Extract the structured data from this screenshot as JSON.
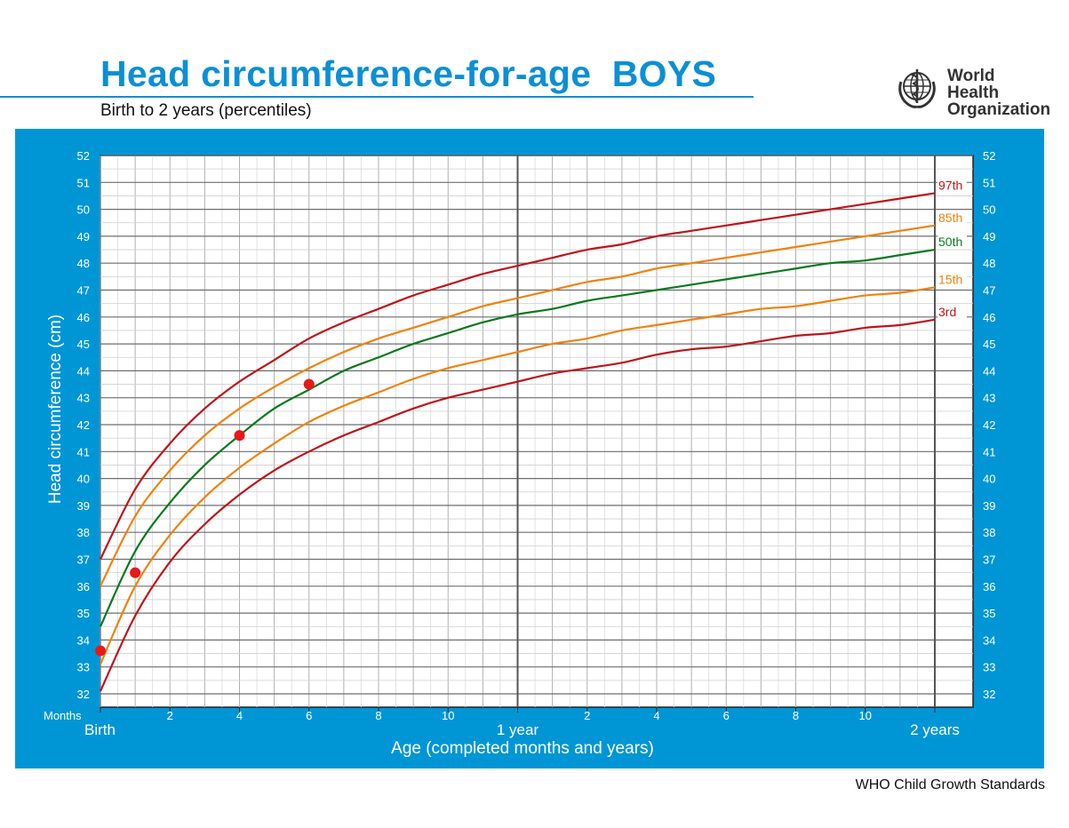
{
  "header": {
    "title": "Head circumference-for-age  BOYS",
    "subtitle": "Birth to 2 years (percentiles)",
    "org_line1": "World Health",
    "org_line2": "Organization",
    "logo_icon": "who-emblem-icon"
  },
  "footer": {
    "text": "WHO Child Growth Standards"
  },
  "colors": {
    "brand_blue": "#0b8fd6",
    "panel_blue": "#0096d6",
    "p97": "#c0141b",
    "p85": "#f0820f",
    "p50": "#0a7a1e",
    "p15": "#f0820f",
    "p3": "#c0141b",
    "points": "#e8181b"
  },
  "chart_data": {
    "type": "line",
    "title": "Head circumference-for-age  BOYS",
    "subtitle": "Birth to 2 years (percentiles)",
    "xlabel": "Age (completed months and years)",
    "ylabel": "Head circumference (cm)",
    "xlim": [
      0,
      24
    ],
    "ylim": [
      31.5,
      52
    ],
    "grid": true,
    "x_unit_label": "Months",
    "x_ticks": [
      {
        "month": 0,
        "label": "Birth",
        "major": true
      },
      {
        "month": 2,
        "label": "2"
      },
      {
        "month": 4,
        "label": "4"
      },
      {
        "month": 6,
        "label": "6"
      },
      {
        "month": 8,
        "label": "8"
      },
      {
        "month": 10,
        "label": "10"
      },
      {
        "month": 12,
        "label": "1 year",
        "major": true
      },
      {
        "month": 14,
        "label": "2"
      },
      {
        "month": 16,
        "label": "4"
      },
      {
        "month": 18,
        "label": "6"
      },
      {
        "month": 20,
        "label": "8"
      },
      {
        "month": 22,
        "label": "10"
      },
      {
        "month": 24,
        "label": "2 years",
        "major": true
      }
    ],
    "y_ticks": [
      32,
      33,
      34,
      35,
      36,
      37,
      38,
      39,
      40,
      41,
      42,
      43,
      44,
      45,
      46,
      47,
      48,
      49,
      50,
      51,
      52
    ],
    "x": [
      0,
      1,
      2,
      3,
      4,
      5,
      6,
      7,
      8,
      9,
      10,
      11,
      12,
      13,
      14,
      15,
      16,
      17,
      18,
      19,
      20,
      21,
      22,
      23,
      24
    ],
    "series": [
      {
        "name": "97th",
        "color_key": "p97",
        "values": [
          37.0,
          39.6,
          41.3,
          42.6,
          43.6,
          44.4,
          45.2,
          45.8,
          46.3,
          46.8,
          47.2,
          47.6,
          47.9,
          48.2,
          48.5,
          48.7,
          49.0,
          49.2,
          49.4,
          49.6,
          49.8,
          50.0,
          50.2,
          50.4,
          50.6
        ]
      },
      {
        "name": "85th",
        "color_key": "p85",
        "values": [
          36.0,
          38.6,
          40.3,
          41.6,
          42.6,
          43.4,
          44.1,
          44.7,
          45.2,
          45.6,
          46.0,
          46.4,
          46.7,
          47.0,
          47.3,
          47.5,
          47.8,
          48.0,
          48.2,
          48.4,
          48.6,
          48.8,
          49.0,
          49.2,
          49.4
        ]
      },
      {
        "name": "50th",
        "color_key": "p50",
        "values": [
          34.5,
          37.3,
          39.1,
          40.5,
          41.6,
          42.6,
          43.3,
          44.0,
          44.5,
          45.0,
          45.4,
          45.8,
          46.1,
          46.3,
          46.6,
          46.8,
          47.0,
          47.2,
          47.4,
          47.6,
          47.8,
          48.0,
          48.1,
          48.3,
          48.5
        ]
      },
      {
        "name": "15th",
        "color_key": "p15",
        "values": [
          33.1,
          36.0,
          37.9,
          39.3,
          40.4,
          41.3,
          42.1,
          42.7,
          43.2,
          43.7,
          44.1,
          44.4,
          44.7,
          45.0,
          45.2,
          45.5,
          45.7,
          45.9,
          46.1,
          46.3,
          46.4,
          46.6,
          46.8,
          46.9,
          47.1
        ]
      },
      {
        "name": "3rd",
        "color_key": "p3",
        "values": [
          32.1,
          34.9,
          36.9,
          38.3,
          39.4,
          40.3,
          41.0,
          41.6,
          42.1,
          42.6,
          43.0,
          43.3,
          43.6,
          43.9,
          44.1,
          44.3,
          44.6,
          44.8,
          44.9,
          45.1,
          45.3,
          45.4,
          45.6,
          45.7,
          45.9
        ]
      }
    ],
    "points": [
      {
        "x": 0,
        "y": 33.6
      },
      {
        "x": 1,
        "y": 36.5
      },
      {
        "x": 4,
        "y": 41.6
      },
      {
        "x": 6,
        "y": 43.5
      }
    ]
  }
}
